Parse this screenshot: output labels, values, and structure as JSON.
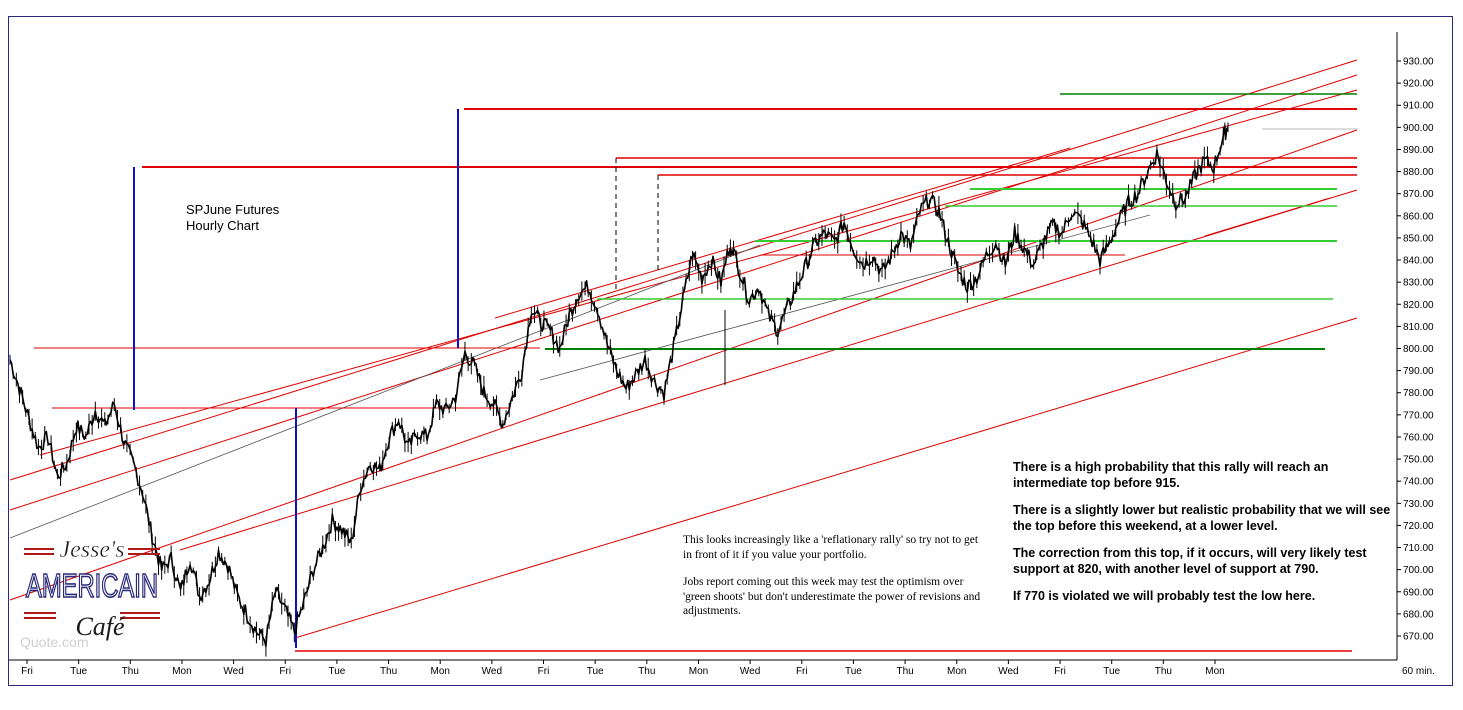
{
  "chart_data": {
    "type": "line",
    "title": "SPJune Futures",
    "subtitle": "Hourly Chart",
    "timeframe_label": "60 min.",
    "y_ticks": [
      670,
      680,
      690,
      700,
      710,
      720,
      730,
      740,
      750,
      760,
      770,
      780,
      790,
      800,
      810,
      820,
      830,
      840,
      850,
      860,
      870,
      880,
      890,
      900,
      910,
      920,
      930
    ],
    "ylim": [
      664,
      934
    ],
    "x_ticks": [
      "Fri",
      "Tue",
      "Thu",
      "Mon",
      "Wed",
      "Fri",
      "Tue",
      "Thu",
      "Mon",
      "Wed",
      "Fri",
      "Tue",
      "Thu",
      "Mon",
      "Wed",
      "Fri",
      "Tue",
      "Thu",
      "Mon",
      "Wed",
      "Fri",
      "Tue",
      "Thu",
      "Mon"
    ],
    "series": [
      {
        "values": [
          [
            0,
            795
          ],
          [
            4,
            782
          ],
          [
            8,
            768
          ],
          [
            12,
            755
          ],
          [
            16,
            760
          ],
          [
            20,
            742
          ],
          [
            24,
            748
          ],
          [
            28,
            765
          ],
          [
            32,
            760
          ],
          [
            36,
            772
          ],
          [
            40,
            765
          ],
          [
            44,
            775
          ],
          [
            48,
            758
          ],
          [
            52,
            748
          ],
          [
            56,
            735
          ],
          [
            60,
            715
          ],
          [
            64,
            700
          ],
          [
            68,
            705
          ],
          [
            72,
            690
          ],
          [
            76,
            705
          ],
          [
            80,
            688
          ],
          [
            84,
            695
          ],
          [
            88,
            708
          ],
          [
            92,
            702
          ],
          [
            96,
            688
          ],
          [
            100,
            680
          ],
          [
            104,
            672
          ],
          [
            108,
            668
          ],
          [
            112,
            690
          ],
          [
            116,
            682
          ],
          [
            120,
            672
          ],
          [
            124,
            685
          ],
          [
            128,
            700
          ],
          [
            132,
            710
          ],
          [
            136,
            722
          ],
          [
            140,
            718
          ],
          [
            144,
            712
          ],
          [
            148,
            738
          ],
          [
            152,
            748
          ],
          [
            156,
            745
          ],
          [
            160,
            760
          ],
          [
            164,
            768
          ],
          [
            168,
            755
          ],
          [
            172,
            762
          ],
          [
            176,
            760
          ],
          [
            180,
            775
          ],
          [
            184,
            772
          ],
          [
            188,
            778
          ],
          [
            192,
            798
          ],
          [
            196,
            792
          ],
          [
            200,
            780
          ],
          [
            204,
            775
          ],
          [
            208,
            766
          ],
          [
            212,
            778
          ],
          [
            216,
            790
          ],
          [
            220,
            818
          ],
          [
            224,
            812
          ],
          [
            228,
            808
          ],
          [
            232,
            800
          ],
          [
            236,
            815
          ],
          [
            240,
            825
          ],
          [
            244,
            828
          ],
          [
            248,
            818
          ],
          [
            252,
            802
          ],
          [
            256,
            790
          ],
          [
            260,
            782
          ],
          [
            264,
            788
          ],
          [
            268,
            795
          ],
          [
            272,
            785
          ],
          [
            276,
            780
          ],
          [
            280,
            800
          ],
          [
            284,
            822
          ],
          [
            288,
            843
          ],
          [
            292,
            832
          ],
          [
            296,
            840
          ],
          [
            300,
            830
          ],
          [
            304,
            848
          ],
          [
            308,
            835
          ],
          [
            312,
            822
          ],
          [
            316,
            828
          ],
          [
            320,
            815
          ],
          [
            324,
            808
          ],
          [
            328,
            818
          ],
          [
            332,
            828
          ],
          [
            336,
            838
          ],
          [
            340,
            848
          ],
          [
            344,
            852
          ],
          [
            348,
            848
          ],
          [
            352,
            857
          ],
          [
            356,
            845
          ],
          [
            360,
            838
          ],
          [
            364,
            842
          ],
          [
            368,
            834
          ],
          [
            372,
            842
          ],
          [
            376,
            852
          ],
          [
            380,
            846
          ],
          [
            384,
            862
          ],
          [
            388,
            868
          ],
          [
            392,
            862
          ],
          [
            396,
            848
          ],
          [
            400,
            835
          ],
          [
            404,
            828
          ],
          [
            408,
            832
          ],
          [
            412,
            842
          ],
          [
            416,
            848
          ],
          [
            420,
            838
          ],
          [
            424,
            852
          ],
          [
            428,
            845
          ],
          [
            432,
            838
          ],
          [
            436,
            848
          ],
          [
            440,
            856
          ],
          [
            444,
            852
          ],
          [
            448,
            862
          ],
          [
            452,
            858
          ],
          [
            456,
            850
          ],
          [
            460,
            840
          ],
          [
            464,
            848
          ],
          [
            468,
            858
          ],
          [
            472,
            866
          ],
          [
            476,
            870
          ],
          [
            480,
            880
          ],
          [
            484,
            888
          ],
          [
            488,
            876
          ],
          [
            492,
            866
          ],
          [
            496,
            868
          ],
          [
            500,
            878
          ],
          [
            504,
            885
          ],
          [
            508,
            882
          ],
          [
            512,
            896
          ],
          [
            514,
            900
          ]
        ]
      }
    ]
  },
  "annotations": {
    "left": [
      "This looks increasingly like a 'reflationary rally' so try not to get in front of it if you value your portfolio.",
      "Jobs report coming out this week may test the optimism over 'green shoots' but don't underestimate the power of revisions and adjustments."
    ],
    "right": [
      "There is a high probability that this rally will reach an intermediate top before 915.",
      "There is a slightly lower but realistic probability that we will see the top before this weekend, at a lower level.",
      "The correction from this top, if it occurs, will very likely test support at 820, with another level of support at 790.",
      "If 770 is violated we will probably test the low here."
    ]
  },
  "logo": {
    "line1": "Jesse's",
    "line2": "AMERICAIN",
    "line3": "Café",
    "watermark": "Quote.com"
  },
  "colors": {
    "price": "#000000",
    "resistance": "#e00000",
    "support_light": "#33cc33",
    "support_dark": "#008000",
    "marker": "#1010cc",
    "titlebar": "#000080"
  }
}
